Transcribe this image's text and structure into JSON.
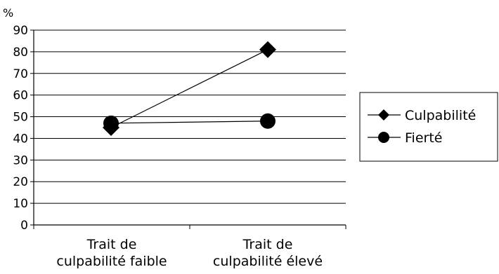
{
  "chart_data": {
    "type": "line",
    "unit_label": "%",
    "categories": [
      [
        "Trait de",
        "culpabilité faible"
      ],
      [
        "Trait de",
        "culpabilité élevé"
      ]
    ],
    "ylim": [
      0,
      90
    ],
    "yticks": [
      0,
      10,
      20,
      30,
      40,
      50,
      60,
      70,
      80,
      90
    ],
    "grid": true,
    "legend_position": "right",
    "series": [
      {
        "name": "Culpabilité",
        "marker": "diamond",
        "values": [
          45,
          81
        ]
      },
      {
        "name": "Fierté",
        "marker": "circle",
        "values": [
          47,
          48
        ]
      }
    ],
    "colors": {
      "line": "#000000",
      "grid": "#000000",
      "background": "#ffffff"
    }
  }
}
